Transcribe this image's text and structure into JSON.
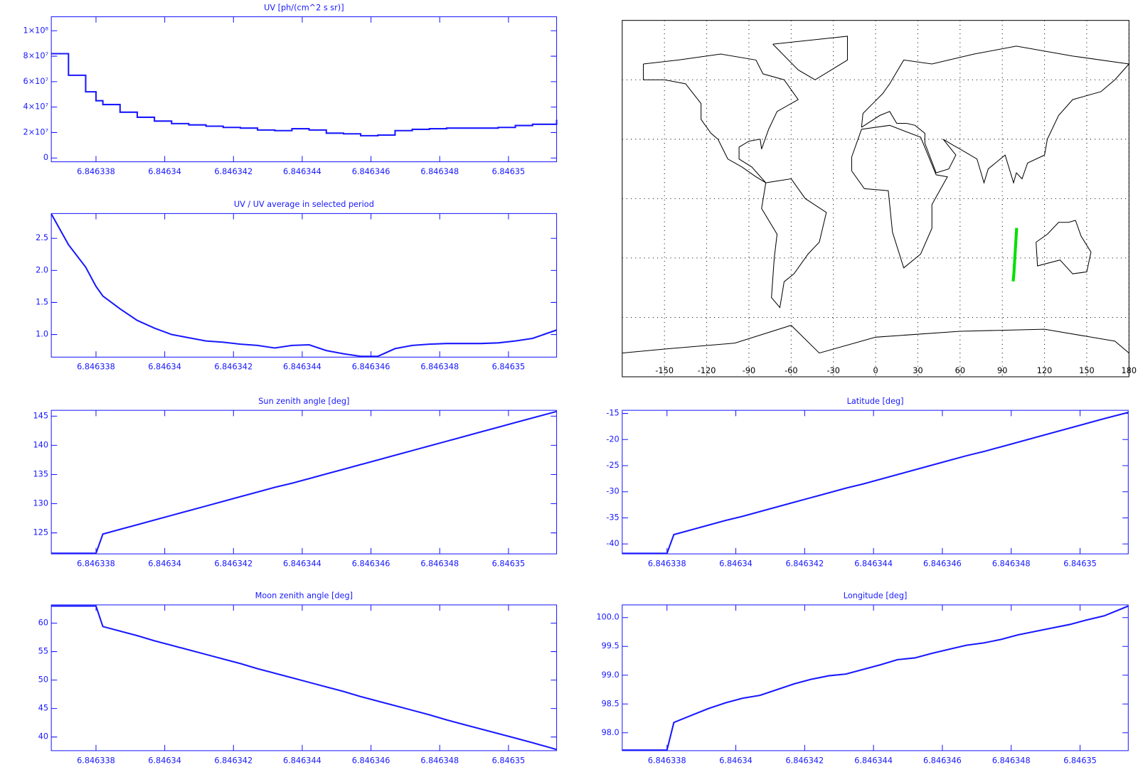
{
  "chart_data": [
    {
      "type": "line",
      "title": "UV [ph/(cm^2 s sr)]",
      "drawstyle": "steps",
      "color": "#1818ff",
      "x": [
        6.8463367,
        6.8463372,
        6.8463377,
        6.846338,
        6.8463382,
        6.8463387,
        6.8463392,
        6.8463397,
        6.8463402,
        6.8463407,
        6.8463412,
        6.8463417,
        6.8463422,
        6.8463427,
        6.8463432,
        6.8463437,
        6.8463442,
        6.8463447,
        6.8463452,
        6.8463457,
        6.8463462,
        6.8463467,
        6.8463472,
        6.8463477,
        6.8463482,
        6.8463487,
        6.8463492,
        6.8463497,
        6.8463502,
        6.8463507,
        6.8463514
      ],
      "values": [
        82000000,
        65000000,
        52000000,
        45000000,
        42000000,
        36000000,
        32000000,
        29000000,
        27000000,
        26000000,
        25000000,
        24000000,
        23500000,
        22000000,
        21500000,
        23000000,
        22000000,
        19500000,
        19000000,
        17500000,
        18000000,
        21500000,
        22500000,
        23000000,
        23500000,
        23500000,
        23500000,
        24000000,
        25500000,
        26500000,
        30000000
      ],
      "xlim": [
        6.8463367,
        6.8463514
      ],
      "xticks": [
        6.846338,
        6.84634,
        6.846342,
        6.846344,
        6.846346,
        6.846348,
        6.84635
      ],
      "ylim": [
        -3000000,
        111000000
      ],
      "yticks": [
        0,
        {
          "value": 20000000,
          "label": "2×10⁷"
        },
        {
          "value": 40000000,
          "label": "4×10⁷"
        },
        {
          "value": 60000000,
          "label": "6×10⁷"
        },
        {
          "value": 80000000,
          "label": "8×10⁷"
        },
        {
          "value": 100000000,
          "label": "1×10⁸"
        }
      ]
    },
    {
      "type": "line",
      "title": "UV / UV average in selected period",
      "color": "#1818ff",
      "x": [
        6.8463367,
        6.8463372,
        6.8463377,
        6.846338,
        6.8463382,
        6.8463387,
        6.8463392,
        6.8463397,
        6.8463402,
        6.8463407,
        6.8463412,
        6.8463417,
        6.8463422,
        6.8463427,
        6.8463432,
        6.8463437,
        6.8463442,
        6.8463447,
        6.8463452,
        6.8463457,
        6.8463462,
        6.8463467,
        6.8463472,
        6.8463477,
        6.8463482,
        6.8463487,
        6.8463492,
        6.8463497,
        6.8463502,
        6.8463507,
        6.8463514
      ],
      "values": [
        2.88,
        2.4,
        2.05,
        1.75,
        1.6,
        1.4,
        1.22,
        1.1,
        1.0,
        0.95,
        0.9,
        0.88,
        0.85,
        0.83,
        0.79,
        0.83,
        0.84,
        0.75,
        0.7,
        0.66,
        0.66,
        0.78,
        0.83,
        0.85,
        0.86,
        0.86,
        0.86,
        0.87,
        0.9,
        0.94,
        1.07
      ],
      "xlim": [
        6.8463367,
        6.8463514
      ],
      "xticks": [
        6.846338,
        6.84634,
        6.846342,
        6.846344,
        6.846346,
        6.846348,
        6.84635
      ],
      "ylim": [
        0.648,
        2.886
      ],
      "yticks": [
        {
          "value": 1,
          "label": "1.0"
        },
        1.5,
        {
          "value": 2,
          "label": "2.0"
        },
        2.5
      ]
    },
    {
      "type": "map",
      "color": "#00e000",
      "grid": true,
      "x": [
        97.7,
        98.2,
        100.2
      ],
      "values": [
        -41.8,
        -38.2,
        -14.8
      ],
      "xlim": [
        -180,
        180
      ],
      "xticks": [
        -150,
        -120,
        -90,
        -60,
        -30,
        0,
        30,
        60,
        90,
        120,
        150,
        180
      ],
      "ylim": [
        -90,
        90
      ],
      "yticks": [
        -60,
        -30,
        0,
        30,
        60
      ]
    },
    {
      "type": "line",
      "title": "Sun zenith angle [deg]",
      "color": "#1818ff",
      "x": [
        6.8463367,
        6.8463372,
        6.8463377,
        6.846338,
        6.8463382,
        6.8463387,
        6.8463392,
        6.8463397,
        6.8463402,
        6.8463407,
        6.8463412,
        6.8463417,
        6.8463422,
        6.8463427,
        6.8463432,
        6.8463437,
        6.8463442,
        6.8463447,
        6.8463452,
        6.8463457,
        6.8463462,
        6.8463467,
        6.8463472,
        6.8463477,
        6.8463482,
        6.8463487,
        6.8463492,
        6.8463497,
        6.8463502,
        6.8463507,
        6.8463514
      ],
      "values": [
        121.5,
        121.5,
        121.5,
        121.5,
        124.8,
        125.6,
        126.4,
        127.2,
        128.0,
        128.8,
        129.6,
        130.4,
        131.2,
        132.0,
        132.8,
        133.5,
        134.3,
        135.1,
        135.9,
        136.7,
        137.5,
        138.3,
        139.1,
        139.9,
        140.7,
        141.5,
        142.3,
        143.1,
        143.9,
        144.7,
        145.8
      ],
      "xlim": [
        6.8463367,
        6.8463514
      ],
      "xticks": [
        6.846338,
        6.84634,
        6.846342,
        6.846344,
        6.846346,
        6.846348,
        6.84635
      ],
      "ylim": [
        121.4,
        146
      ],
      "yticks": [
        125,
        130,
        135,
        140,
        145
      ]
    },
    {
      "type": "line",
      "title": "Latitude [deg]",
      "color": "#1818ff",
      "x": [
        6.8463367,
        6.8463372,
        6.8463377,
        6.846338,
        6.8463382,
        6.8463387,
        6.8463392,
        6.8463397,
        6.8463402,
        6.8463407,
        6.8463412,
        6.8463417,
        6.8463422,
        6.8463427,
        6.8463432,
        6.8463437,
        6.8463442,
        6.8463447,
        6.8463452,
        6.8463457,
        6.8463462,
        6.8463467,
        6.8463472,
        6.8463477,
        6.8463482,
        6.8463487,
        6.8463492,
        6.8463497,
        6.8463502,
        6.8463507,
        6.8463514
      ],
      "values": [
        -41.8,
        -41.8,
        -41.8,
        -41.8,
        -38.2,
        -37.3,
        -36.4,
        -35.5,
        -34.7,
        -33.8,
        -32.9,
        -32.0,
        -31.1,
        -30.2,
        -29.3,
        -28.5,
        -27.6,
        -26.7,
        -25.8,
        -24.9,
        -24.0,
        -23.1,
        -22.3,
        -21.4,
        -20.5,
        -19.6,
        -18.7,
        -17.8,
        -16.9,
        -16.0,
        -14.8
      ],
      "xlim": [
        6.8463367,
        6.8463514
      ],
      "xticks": [
        6.846338,
        6.84634,
        6.846342,
        6.846344,
        6.846346,
        6.846348,
        6.84635
      ],
      "ylim": [
        -41.9,
        -14.4
      ],
      "yticks": [
        -40,
        -35,
        -30,
        -25,
        -20,
        -15
      ]
    },
    {
      "type": "line",
      "title": "Moon zenith angle [deg]",
      "color": "#1818ff",
      "x": [
        6.8463367,
        6.8463372,
        6.8463377,
        6.846338,
        6.8463382,
        6.8463387,
        6.8463392,
        6.8463397,
        6.8463402,
        6.8463407,
        6.8463412,
        6.8463417,
        6.8463422,
        6.8463427,
        6.8463432,
        6.8463437,
        6.8463442,
        6.8463447,
        6.8463452,
        6.8463457,
        6.8463462,
        6.8463467,
        6.8463472,
        6.8463477,
        6.8463482,
        6.8463487,
        6.8463492,
        6.8463497,
        6.8463502,
        6.8463507,
        6.8463514
      ],
      "values": [
        63,
        63,
        63,
        63,
        59.4,
        58.6,
        57.8,
        56.9,
        56.1,
        55.3,
        54.5,
        53.7,
        52.9,
        52.0,
        51.2,
        50.4,
        49.6,
        48.8,
        48.0,
        47.1,
        46.3,
        45.5,
        44.7,
        43.9,
        43.0,
        42.2,
        41.4,
        40.6,
        39.8,
        39.0,
        37.8
      ],
      "xlim": [
        6.8463367,
        6.8463514
      ],
      "xticks": [
        6.846338,
        6.84634,
        6.846342,
        6.846344,
        6.846346,
        6.846348,
        6.84635
      ],
      "ylim": [
        37.6,
        63.2
      ],
      "yticks": [
        40,
        45,
        50,
        55,
        60
      ]
    },
    {
      "type": "line",
      "title": "Longitude [deg]",
      "color": "#1818ff",
      "x": [
        6.8463367,
        6.8463372,
        6.8463377,
        6.846338,
        6.8463382,
        6.8463387,
        6.8463392,
        6.8463397,
        6.8463402,
        6.8463407,
        6.8463412,
        6.8463417,
        6.8463422,
        6.8463427,
        6.8463432,
        6.8463437,
        6.8463442,
        6.8463447,
        6.8463452,
        6.8463457,
        6.8463462,
        6.8463467,
        6.8463472,
        6.8463477,
        6.8463482,
        6.8463487,
        6.8463492,
        6.8463497,
        6.8463502,
        6.8463507,
        6.8463514
      ],
      "values": [
        97.7,
        97.7,
        97.7,
        97.7,
        98.18,
        98.3,
        98.42,
        98.52,
        98.6,
        98.65,
        98.75,
        98.85,
        98.93,
        98.99,
        99.02,
        99.1,
        99.18,
        99.27,
        99.3,
        99.38,
        99.45,
        99.52,
        99.56,
        99.62,
        99.7,
        99.76,
        99.82,
        99.88,
        99.96,
        100.03,
        100.2
      ],
      "xlim": [
        6.8463367,
        6.8463514
      ],
      "xticks": [
        6.846338,
        6.84634,
        6.846342,
        6.846344,
        6.846346,
        6.846348,
        6.84635
      ],
      "ylim": [
        97.69,
        100.22
      ],
      "yticks": [
        {
          "value": 98,
          "label": "98.0"
        },
        98.5,
        {
          "value": 99,
          "label": "99.0"
        },
        99.5,
        {
          "value": 100,
          "label": "100.0"
        }
      ]
    }
  ]
}
